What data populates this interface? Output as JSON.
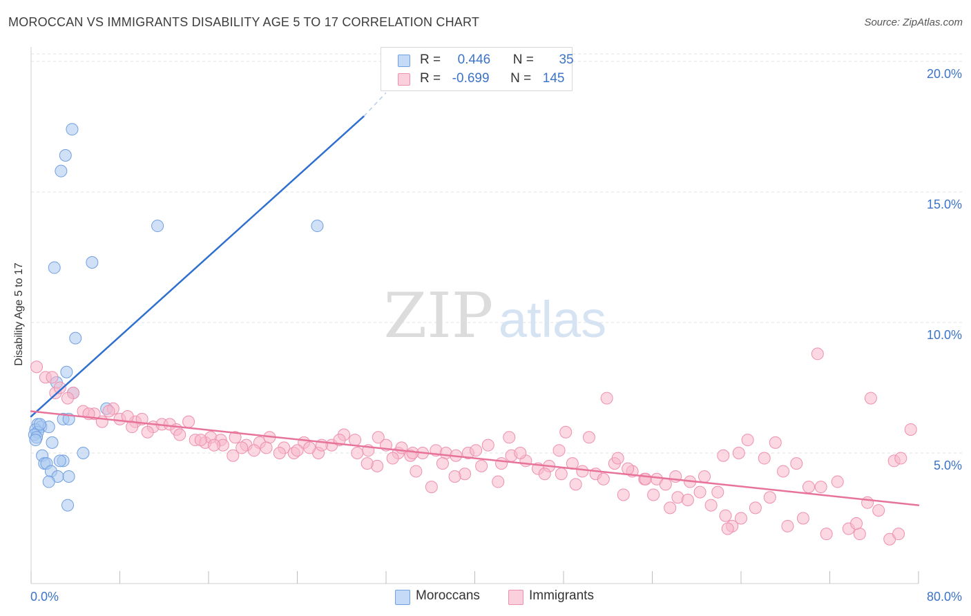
{
  "chart_data": {
    "type": "scatter",
    "title": "MOROCCAN VS IMMIGRANTS DISABILITY AGE 5 TO 17 CORRELATION CHART",
    "source": "Source: ZipAtlas.com",
    "ylabel": "Disability Age 5 to 17",
    "watermark_zip": "ZIP",
    "watermark_atlas": "atlas",
    "xlim": [
      0,
      80
    ],
    "ylim": [
      0,
      20.5
    ],
    "x_tick_labels": [
      "0.0%",
      "80.0%"
    ],
    "y_ticks": [
      5,
      10,
      15,
      20
    ],
    "y_tick_labels": [
      "5.0%",
      "10.0%",
      "15.0%",
      "20.0%"
    ],
    "grid": true,
    "legend_stats": [
      {
        "r_label": "R =",
        "r_value": "0.446",
        "n_label": "N =",
        "n_value": "35",
        "color": "#a9c8f0"
      },
      {
        "r_label": "R =",
        "r_value": "-0.699",
        "n_label": "N =",
        "n_value": "145",
        "color": "#f7b8cb"
      }
    ],
    "series": [
      {
        "name": "Moroccans",
        "color": "#a9c8f0",
        "stroke": "#6f9fe0",
        "line_color": "#2f6fd0",
        "trend": {
          "x0": 0,
          "y0": 6.4,
          "x1": 30,
          "y1": 17.9,
          "dash_to_x": 32,
          "dash_to_y": 18.8
        },
        "points": [
          [
            3.7,
            17.4
          ],
          [
            3.1,
            16.4
          ],
          [
            2.7,
            15.8
          ],
          [
            11.4,
            13.7
          ],
          [
            25.8,
            13.7
          ],
          [
            2.1,
            12.1
          ],
          [
            5.5,
            12.3
          ],
          [
            4.0,
            9.4
          ],
          [
            3.2,
            8.1
          ],
          [
            2.3,
            7.7
          ],
          [
            3.8,
            7.3
          ],
          [
            6.8,
            6.7
          ],
          [
            2.9,
            6.3
          ],
          [
            3.4,
            6.3
          ],
          [
            0.6,
            6.1
          ],
          [
            0.9,
            6.0
          ],
          [
            1.6,
            6.0
          ],
          [
            0.4,
            5.9
          ],
          [
            0.6,
            5.8
          ],
          [
            0.3,
            5.7
          ],
          [
            0.5,
            5.6
          ],
          [
            0.4,
            5.5
          ],
          [
            1.9,
            5.4
          ],
          [
            4.7,
            5.0
          ],
          [
            1.0,
            4.9
          ],
          [
            1.2,
            4.6
          ],
          [
            1.4,
            4.6
          ],
          [
            2.9,
            4.7
          ],
          [
            2.6,
            4.7
          ],
          [
            1.8,
            4.3
          ],
          [
            2.4,
            4.1
          ],
          [
            3.4,
            4.1
          ],
          [
            1.6,
            3.9
          ],
          [
            3.3,
            3.0
          ],
          [
            0.8,
            6.1
          ]
        ]
      },
      {
        "name": "Immigrants",
        "color": "#f7b8cb",
        "stroke": "#ee8fae",
        "line_color": "#e8739a",
        "trend": {
          "x0": 0,
          "y0": 6.6,
          "x1": 80,
          "y1": 3.0
        },
        "points": [
          [
            0.5,
            8.3
          ],
          [
            1.3,
            7.9
          ],
          [
            3.8,
            7.3
          ],
          [
            2.2,
            7.3
          ],
          [
            3.3,
            7.1
          ],
          [
            2.6,
            7.5
          ],
          [
            1.9,
            7.9
          ],
          [
            5.7,
            6.5
          ],
          [
            6.4,
            6.2
          ],
          [
            4.7,
            6.6
          ],
          [
            7.4,
            6.7
          ],
          [
            5.2,
            6.5
          ],
          [
            8.0,
            6.3
          ],
          [
            7.0,
            6.6
          ],
          [
            9.4,
            6.2
          ],
          [
            10.0,
            6.3
          ],
          [
            8.7,
            6.4
          ],
          [
            9.1,
            6.0
          ],
          [
            11.0,
            6.0
          ],
          [
            11.8,
            6.1
          ],
          [
            12.5,
            6.1
          ],
          [
            13.1,
            5.9
          ],
          [
            14.2,
            6.2
          ],
          [
            10.5,
            5.8
          ],
          [
            13.4,
            5.7
          ],
          [
            14.8,
            5.5
          ],
          [
            15.7,
            5.4
          ],
          [
            16.2,
            5.6
          ],
          [
            17.1,
            5.5
          ],
          [
            18.4,
            5.6
          ],
          [
            19.4,
            5.3
          ],
          [
            20.6,
            5.4
          ],
          [
            21.5,
            5.6
          ],
          [
            22.8,
            5.2
          ],
          [
            23.7,
            5.0
          ],
          [
            24.6,
            5.4
          ],
          [
            25.9,
            5.0
          ],
          [
            27.1,
            5.3
          ],
          [
            28.2,
            5.7
          ],
          [
            29.2,
            5.5
          ],
          [
            30.4,
            5.1
          ],
          [
            31.3,
            5.6
          ],
          [
            32.0,
            5.3
          ],
          [
            33.1,
            5.0
          ],
          [
            34.2,
            4.9
          ],
          [
            35.3,
            5.0
          ],
          [
            36.5,
            5.1
          ],
          [
            37.4,
            5.0
          ],
          [
            38.3,
            4.9
          ],
          [
            39.4,
            5.0
          ],
          [
            40.1,
            5.1
          ],
          [
            41.2,
            5.3
          ],
          [
            42.4,
            4.6
          ],
          [
            43.3,
            4.9
          ],
          [
            44.6,
            4.7
          ],
          [
            45.7,
            4.4
          ],
          [
            46.7,
            4.5
          ],
          [
            47.8,
            4.2
          ],
          [
            48.8,
            4.6
          ],
          [
            49.7,
            4.3
          ],
          [
            50.9,
            4.2
          ],
          [
            51.6,
            4.0
          ],
          [
            52.6,
            4.6
          ],
          [
            54.2,
            4.3
          ],
          [
            55.3,
            4.0
          ],
          [
            56.4,
            4.0
          ],
          [
            57.2,
            3.8
          ],
          [
            58.3,
            3.3
          ],
          [
            59.2,
            3.2
          ],
          [
            60.3,
            3.5
          ],
          [
            61.3,
            3.0
          ],
          [
            62.6,
            2.6
          ],
          [
            63.2,
            2.2
          ],
          [
            64.0,
            2.5
          ],
          [
            65.3,
            2.9
          ],
          [
            66.6,
            3.3
          ],
          [
            68.2,
            2.2
          ],
          [
            69.6,
            2.5
          ],
          [
            70.1,
            3.7
          ],
          [
            71.7,
            1.9
          ],
          [
            72.7,
            3.9
          ],
          [
            73.7,
            2.1
          ],
          [
            74.7,
            1.9
          ],
          [
            75.4,
            3.1
          ],
          [
            76.4,
            2.8
          ],
          [
            77.4,
            1.7
          ],
          [
            78.2,
            1.9
          ],
          [
            70.9,
            8.8
          ],
          [
            71.2,
            3.7
          ],
          [
            74.4,
            2.3
          ],
          [
            75.7,
            7.1
          ],
          [
            79.3,
            5.9
          ],
          [
            77.8,
            4.7
          ],
          [
            78.4,
            4.8
          ],
          [
            69.0,
            4.6
          ],
          [
            67.1,
            5.4
          ],
          [
            64.6,
            5.5
          ],
          [
            62.4,
            4.9
          ],
          [
            63.8,
            5.0
          ],
          [
            60.7,
            4.1
          ],
          [
            58.1,
            4.1
          ],
          [
            55.4,
            4.0
          ],
          [
            53.8,
            4.4
          ],
          [
            50.3,
            5.6
          ],
          [
            46.3,
            4.2
          ],
          [
            44.1,
            5.0
          ],
          [
            43.1,
            5.6
          ],
          [
            42.1,
            3.9
          ],
          [
            40.6,
            4.5
          ],
          [
            39.1,
            4.2
          ],
          [
            38.2,
            4.1
          ],
          [
            37.1,
            4.6
          ],
          [
            36.1,
            3.7
          ],
          [
            34.7,
            4.3
          ],
          [
            34.4,
            5.0
          ],
          [
            33.4,
            5.2
          ],
          [
            32.6,
            4.8
          ],
          [
            31.2,
            4.5
          ],
          [
            30.3,
            4.6
          ],
          [
            29.4,
            5.0
          ],
          [
            27.8,
            5.5
          ],
          [
            26.2,
            5.3
          ],
          [
            25.1,
            5.2
          ],
          [
            24.0,
            5.1
          ],
          [
            22.4,
            5.0
          ],
          [
            21.2,
            5.2
          ],
          [
            20.1,
            5.1
          ],
          [
            19.0,
            5.2
          ],
          [
            18.2,
            4.9
          ],
          [
            17.3,
            5.3
          ],
          [
            16.5,
            5.3
          ],
          [
            15.3,
            5.5
          ],
          [
            47.6,
            5.1
          ],
          [
            48.2,
            5.8
          ],
          [
            49.1,
            3.8
          ],
          [
            51.9,
            7.1
          ],
          [
            52.9,
            4.8
          ],
          [
            53.4,
            3.4
          ],
          [
            56.1,
            3.4
          ],
          [
            57.6,
            2.9
          ],
          [
            59.4,
            3.9
          ],
          [
            61.9,
            3.5
          ],
          [
            62.8,
            2.1
          ],
          [
            66.1,
            4.8
          ],
          [
            67.8,
            4.3
          ]
        ]
      }
    ],
    "legend": [
      {
        "label": "Moroccans",
        "color": "#a9c8f0",
        "border": "#6f9fe0"
      },
      {
        "label": "Immigrants",
        "color": "#f7b8cb",
        "border": "#ee8fae"
      }
    ]
  }
}
